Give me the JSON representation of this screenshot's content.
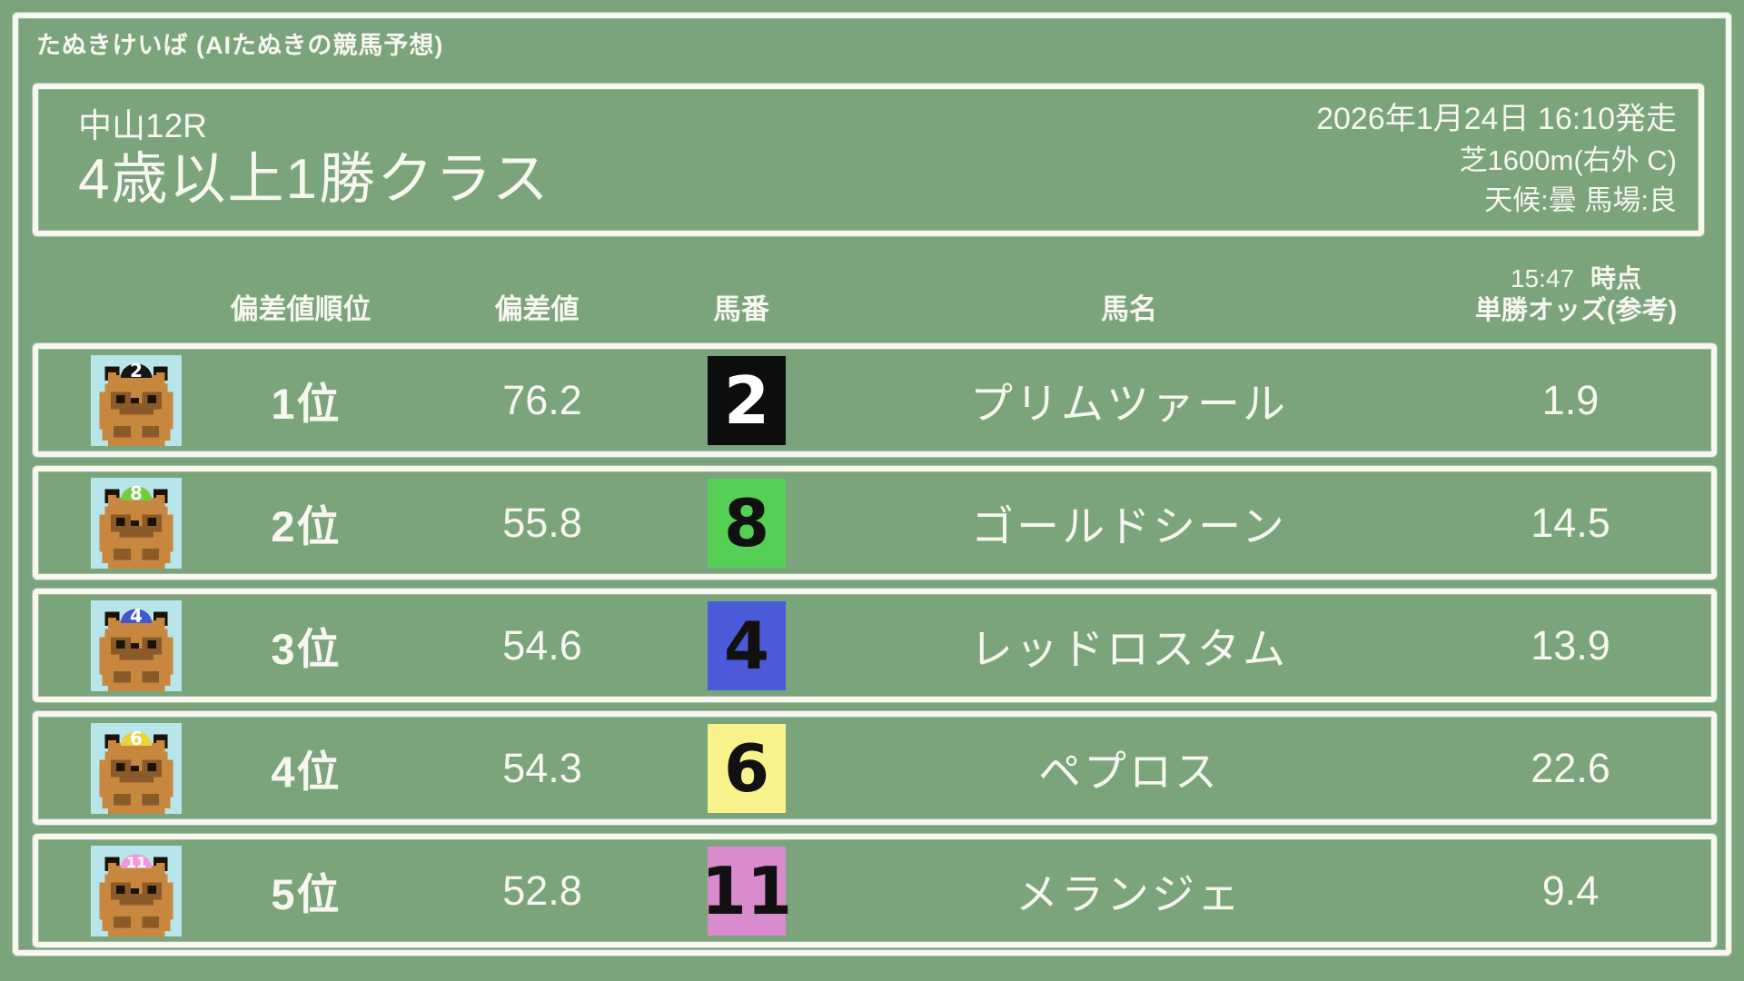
{
  "site": {
    "title": "たぬきけいば (AIたぬきの競馬予想)"
  },
  "race": {
    "course": "中山12R",
    "name": "4歳以上1勝クラス",
    "datetime": "2026年1月24日 16:10発走",
    "track": "芝1600m(右外 C)",
    "condition": "天候:曇 馬場:良"
  },
  "table": {
    "headers": {
      "rank": "偏差値順位",
      "score": "偏差値",
      "number": "馬番",
      "name": "馬名",
      "odds_time": "15:47",
      "odds_time_suffix": "時点",
      "odds_label": "単勝オッズ(参考)"
    },
    "rows": [
      {
        "rank": "1位",
        "score": "76.2",
        "number": "2",
        "name": "プリムツァール",
        "odds": "1.9",
        "number_bg": "#0d0d0d",
        "number_color": "#ffffff",
        "cap_color": "#151515",
        "cap_text_color": "#ffffff"
      },
      {
        "rank": "2位",
        "score": "55.8",
        "number": "8",
        "name": "ゴールドシーン",
        "odds": "14.5",
        "number_bg": "#55d054",
        "number_color": "#111111",
        "cap_color": "#76c93c",
        "cap_text_color": "#ffffff"
      },
      {
        "rank": "3位",
        "score": "54.6",
        "number": "4",
        "name": "レッドロスタム",
        "odds": "13.9",
        "number_bg": "#4a5ad9",
        "number_color": "#111111",
        "cap_color": "#4456cd",
        "cap_text_color": "#ffffff"
      },
      {
        "rank": "4位",
        "score": "54.3",
        "number": "6",
        "name": "ペプロス",
        "odds": "22.6",
        "number_bg": "#f7f289",
        "number_color": "#111111",
        "cap_color": "#ecd23e",
        "cap_text_color": "#ffffff"
      },
      {
        "rank": "5位",
        "score": "52.8",
        "number": "11",
        "name": "メランジェ",
        "odds": "9.4",
        "number_bg": "#d98bce",
        "number_color": "#111111",
        "cap_color": "#f596d6",
        "cap_text_color": "#ffffff"
      }
    ]
  },
  "theme": {
    "background": "#7ba37c",
    "chalk": "#f7f7f0",
    "tanuki_icon_bg": "#b7e6ea",
    "tanuki_body": "#c8873e",
    "tanuki_shade": "#8a5a28"
  }
}
